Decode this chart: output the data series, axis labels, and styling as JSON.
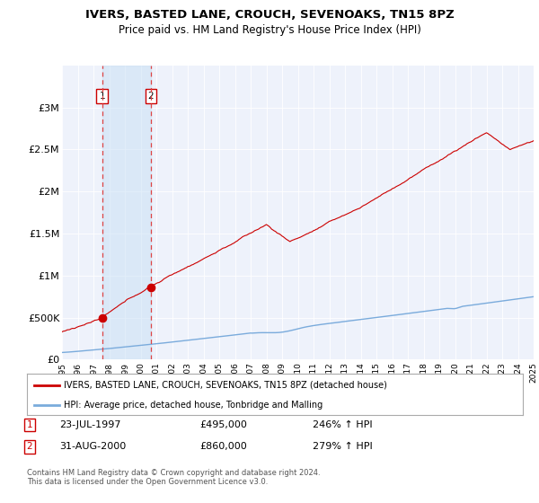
{
  "title": "IVERS, BASTED LANE, CROUCH, SEVENOAKS, TN15 8PZ",
  "subtitle": "Price paid vs. HM Land Registry's House Price Index (HPI)",
  "x_start_year": 1995,
  "x_end_year": 2025,
  "ylim": [
    0,
    3500000
  ],
  "yticks": [
    0,
    500000,
    1000000,
    1500000,
    2000000,
    2500000,
    3000000
  ],
  "ytick_labels": [
    "£0",
    "£500K",
    "£1M",
    "£1.5M",
    "£2M",
    "£2.5M",
    "£3M"
  ],
  "sale1": {
    "year": 1997.55,
    "price": 495000,
    "label": "1",
    "date": "23-JUL-1997",
    "hpi_pct": "246% ↑ HPI"
  },
  "sale2": {
    "year": 2000.66,
    "price": 860000,
    "label": "2",
    "date": "31-AUG-2000",
    "hpi_pct": "279% ↑ HPI"
  },
  "hpi_line_color": "#7aabdc",
  "hpi_fill_color": "#c8dff5",
  "price_line_color": "#cc0000",
  "sale_dot_color": "#cc0000",
  "dashed_line_color": "#dd4444",
  "plot_bg_color": "#eef2fb",
  "legend_label_red": "IVERS, BASTED LANE, CROUCH, SEVENOAKS, TN15 8PZ (detached house)",
  "legend_label_blue": "HPI: Average price, detached house, Tonbridge and Malling",
  "footer": "Contains HM Land Registry data © Crown copyright and database right 2024.\nThis data is licensed under the Open Government Licence v3.0."
}
